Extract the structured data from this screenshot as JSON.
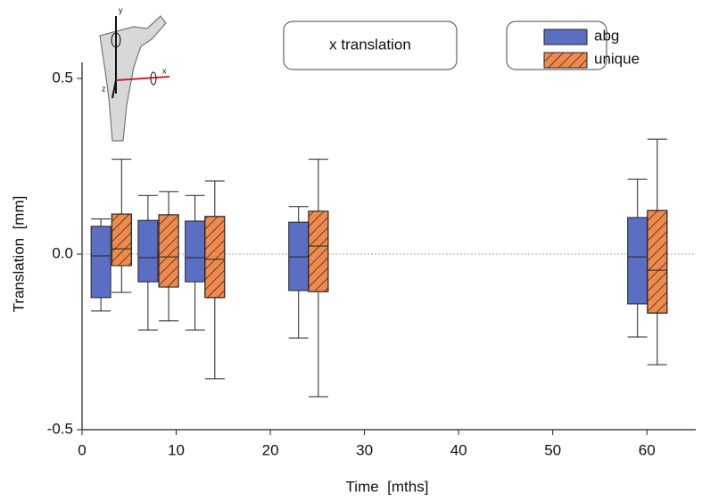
{
  "chart_data": {
    "type": "box",
    "annotation": "x translation",
    "x_label": "Time  [mths]",
    "y_label": "Translation  [mm]",
    "inset_labels": [
      "y",
      "x",
      "z"
    ],
    "xlim": [
      0,
      65
    ],
    "ylim": [
      -0.5,
      0.5
    ],
    "xticks": [
      0,
      10,
      20,
      30,
      40,
      50,
      60
    ],
    "yticks": [
      {
        "value": -0.5,
        "label": "-0.5"
      },
      {
        "value": 0,
        "label": "0.0"
      },
      {
        "value": 0.5,
        "label": "0.5"
      }
    ],
    "zero_line": true,
    "series": [
      {
        "name": "abg",
        "color": "#5b6fc2",
        "hatch": false,
        "x": [
          2,
          7,
          12,
          23,
          59
        ],
        "whisker_low": [
          -0.162,
          -0.216,
          -0.216,
          -0.239,
          -0.236
        ],
        "q1": [
          -0.124,
          -0.079,
          -0.079,
          -0.104,
          -0.142
        ],
        "median": [
          -0.005,
          -0.01,
          -0.01,
          -0.008,
          -0.008
        ],
        "q3": [
          0.079,
          0.096,
          0.094,
          0.091,
          0.104
        ],
        "whisker_high": [
          0.1,
          0.167,
          0.167,
          0.135,
          0.213
        ]
      },
      {
        "name": "unique",
        "color": "#ef8a4c",
        "hatch": true,
        "x": [
          4.2,
          9.2,
          14.1,
          25.1,
          61.1
        ],
        "whisker_low": [
          -0.109,
          -0.19,
          -0.355,
          -0.406,
          -0.315
        ],
        "q1": [
          -0.033,
          -0.094,
          -0.124,
          -0.107,
          -0.168
        ],
        "median": [
          0.015,
          -0.008,
          -0.015,
          0.023,
          -0.046
        ],
        "q3": [
          0.114,
          0.112,
          0.107,
          0.122,
          0.124
        ],
        "whisker_high": [
          0.27,
          0.178,
          0.208,
          0.27,
          0.327
        ]
      }
    ]
  }
}
